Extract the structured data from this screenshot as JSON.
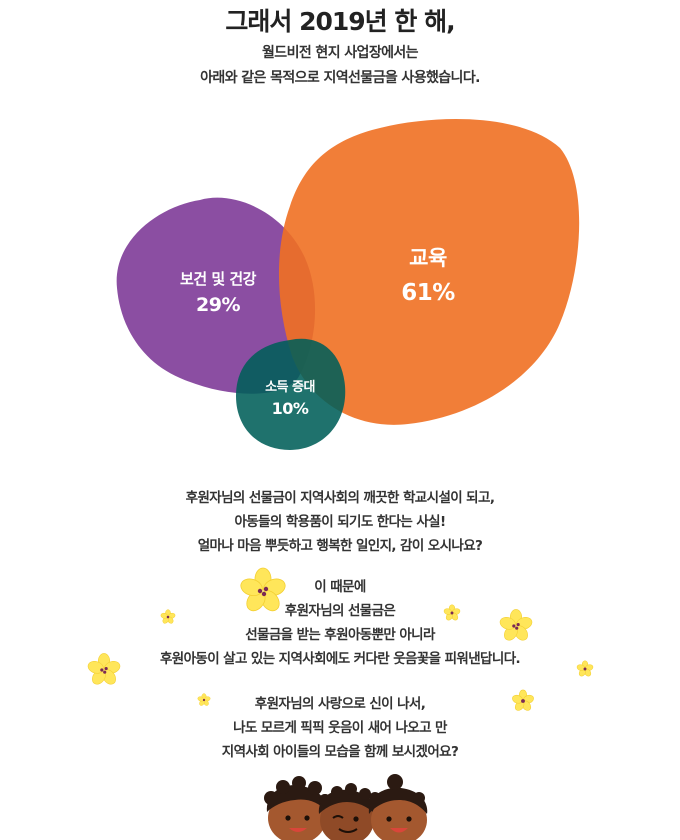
{
  "heading": {
    "title": "그래서 2019년 한 해,",
    "line1": "월드비전 현지 사업장에서는",
    "line2": "아래와 같은 목적으로 지역선물금을 사용했습니다."
  },
  "venn": {
    "items": [
      {
        "name": "보건 및 건강",
        "percent": "29%",
        "color": "#7e3b98"
      },
      {
        "name": "교육",
        "percent": "61%",
        "color": "#f07022"
      },
      {
        "name": "소득 증대",
        "percent": "10%",
        "color": "#005f59"
      }
    ]
  },
  "paragraphs": [
    {
      "lines": [
        "후원자님의 선물금이 지역사회의 깨끗한 학교시설이 되고,",
        "아동들의 학용품이 되기도 한다는 사실!",
        "얼마나 마음 뿌듯하고 행복한 일인지, 감이 오시나요?"
      ]
    },
    {
      "lines": [
        "이 때문에",
        "후원자님의 선물금은",
        "선물금을 받는 후원아동뿐만 아니라",
        "후원아동이 살고 있는 지역사회에도 커다란 웃음꽃을 피워낸답니다."
      ]
    },
    {
      "lines": [
        "후원자님의 사랑으로 신이 나서,",
        "나도 모르게 픽픽 웃음이 새어 나오고 만",
        "지역사회 아이들의 모습을 함께 보시겠어요?"
      ]
    }
  ],
  "decorations": {
    "flower_color": "#ffe65a",
    "flower_center_color": "#7b2a55",
    "icons": [
      "flower-icon",
      "children-illustration"
    ]
  }
}
